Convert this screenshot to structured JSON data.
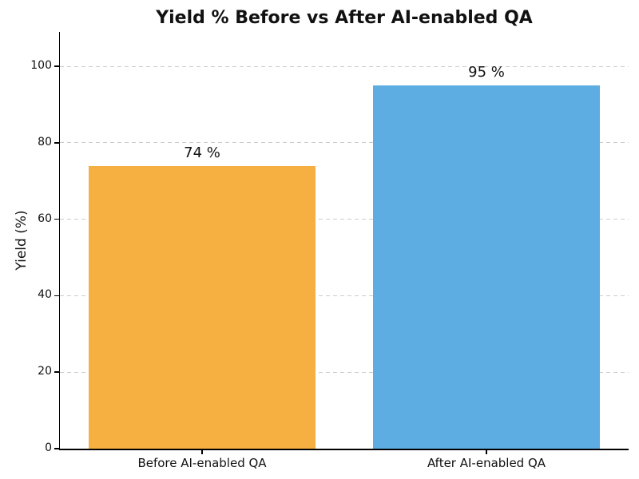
{
  "chart_data": {
    "type": "bar",
    "title": "Yield % Before vs After AI-enabled QA",
    "xlabel": "",
    "ylabel": "Yield (%)",
    "categories": [
      "Before AI-enabled QA",
      "After AI-enabled QA"
    ],
    "values": [
      74,
      95
    ],
    "bar_labels": [
      "74 %",
      "95 %"
    ],
    "bar_colors": [
      "#F5B041",
      "#5DADE2"
    ],
    "ylim": [
      0,
      109
    ],
    "yticks": [
      0,
      20,
      40,
      60,
      80,
      100
    ],
    "grid": "horizontal dashed",
    "grid_color": "#cccccc",
    "legend": "none",
    "background_color": "#ffffff"
  }
}
